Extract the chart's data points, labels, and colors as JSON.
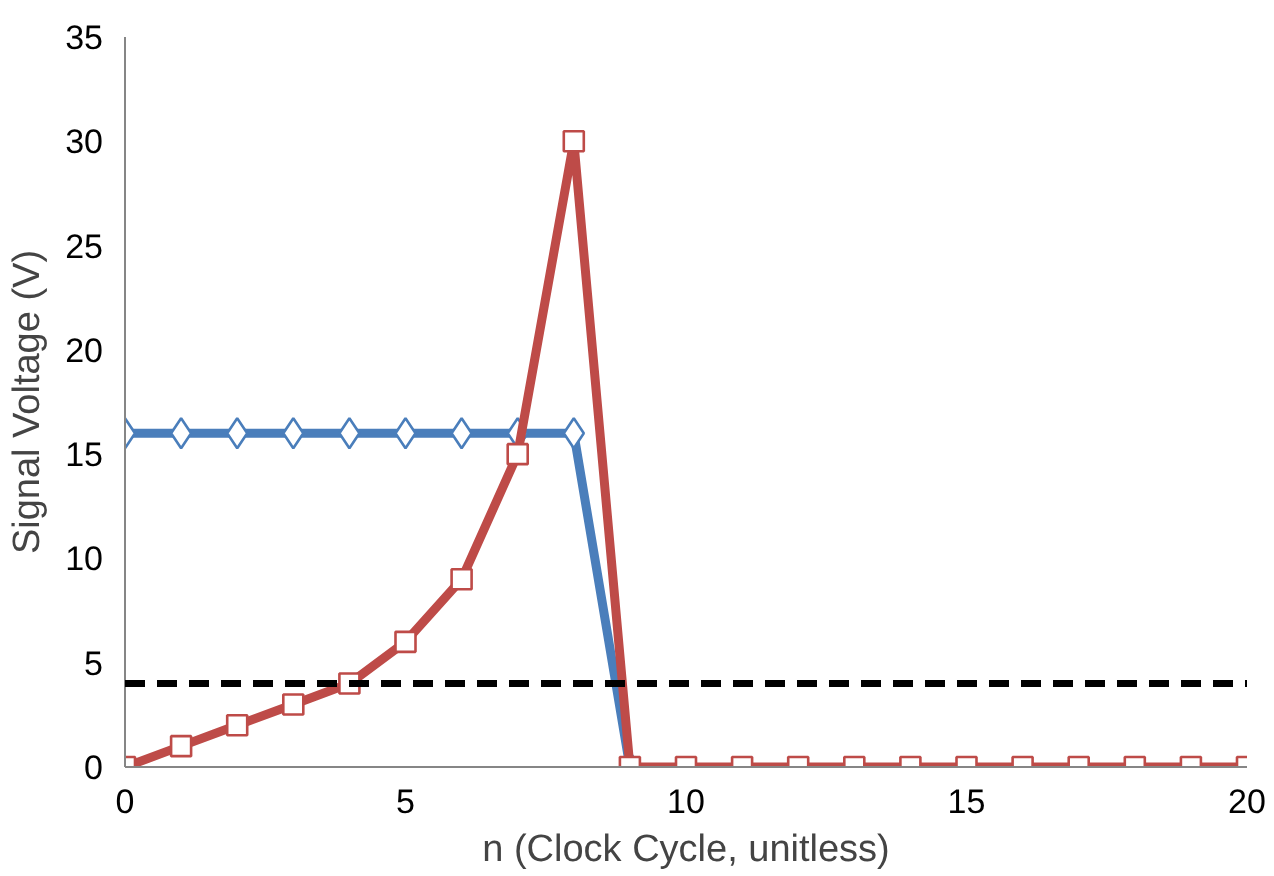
{
  "chart_data": {
    "type": "line",
    "xlabel": "n (Clock Cycle, unitless)",
    "ylabel": "Signal Voltage (V)",
    "x": [
      0,
      1,
      2,
      3,
      4,
      5,
      6,
      7,
      8,
      9,
      10,
      11,
      12,
      13,
      14,
      15,
      16,
      17,
      18,
      19,
      20
    ],
    "series": [
      {
        "color": "#4a7ebb",
        "marker": "diamond",
        "values": [
          16,
          16,
          16,
          16,
          16,
          16,
          16,
          16,
          16,
          0,
          null,
          null,
          null,
          null,
          null,
          null,
          null,
          null,
          null,
          null,
          null
        ]
      },
      {
        "color": "#be4b48",
        "marker": "square",
        "values": [
          0,
          1,
          2,
          3,
          4,
          6,
          9,
          15,
          30,
          0,
          0,
          0,
          0,
          0,
          0,
          0,
          0,
          0,
          0,
          0,
          0
        ]
      }
    ],
    "ref_lines": [
      {
        "axis": "y",
        "value": 4,
        "color": "#000000",
        "line_style": "dashed"
      }
    ],
    "xlim": [
      0,
      20
    ],
    "xticks": [
      0,
      5,
      10,
      15,
      20
    ],
    "ylim": [
      0,
      35
    ],
    "yticks": [
      0,
      5,
      10,
      15,
      20,
      25,
      30,
      35
    ],
    "grid": false,
    "line_style": "solid"
  }
}
